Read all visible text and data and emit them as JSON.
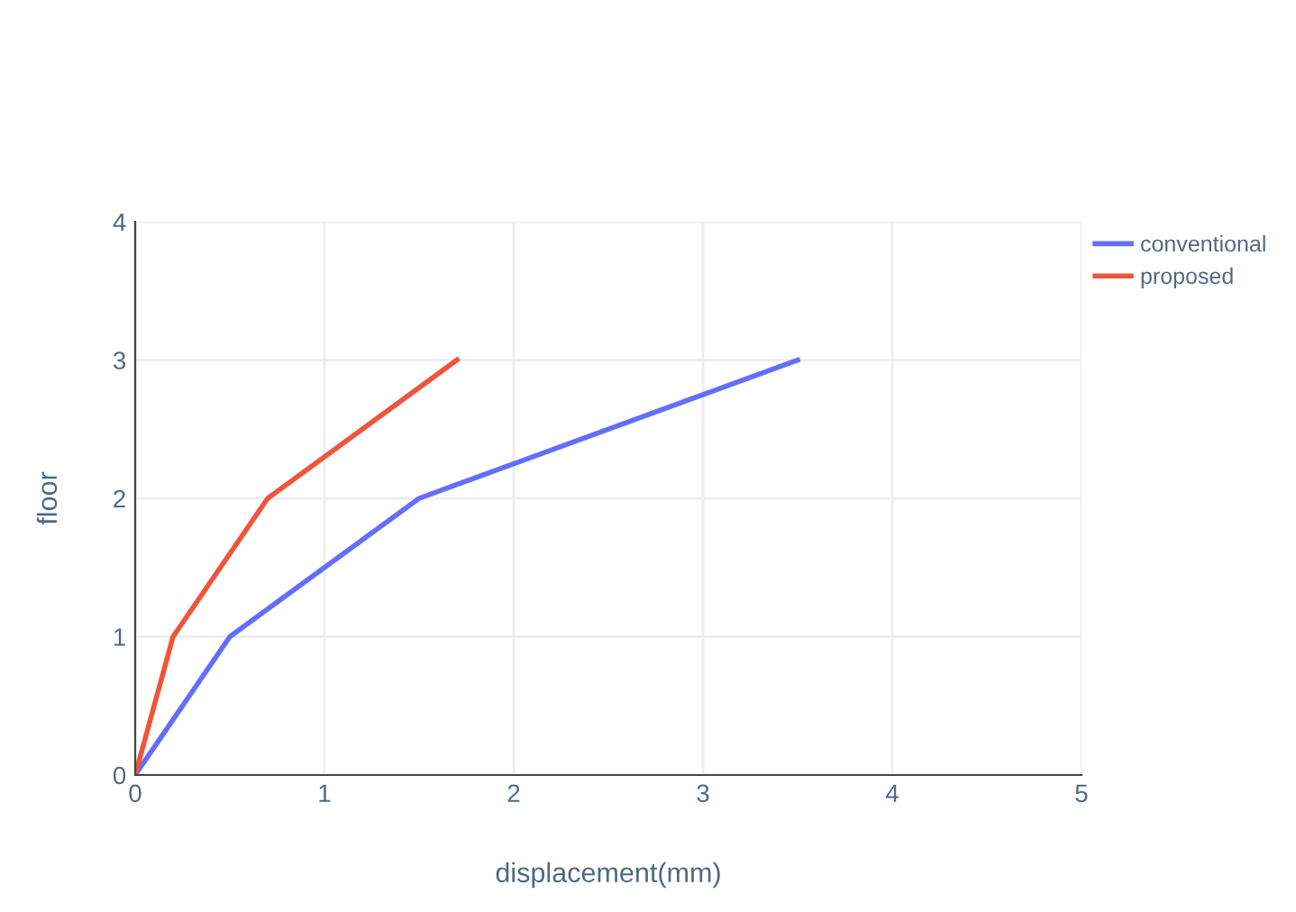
{
  "chart_data": {
    "type": "line",
    "xlabel": "displacement(mm)",
    "ylabel": "floor",
    "xlim": [
      0,
      5
    ],
    "ylim": [
      0,
      4
    ],
    "xticks": [
      0,
      1,
      2,
      3,
      4,
      5
    ],
    "yticks": [
      0,
      1,
      2,
      3,
      4
    ],
    "grid": true,
    "legend": "top right",
    "marker": "none",
    "line_style": "solid",
    "series": [
      {
        "name": "conventional",
        "color": "#636efa",
        "x": [
          0,
          0.5,
          1.5,
          3.5
        ],
        "values": [
          0,
          1,
          2,
          3
        ]
      },
      {
        "name": "proposed",
        "color": "#ef553b",
        "x": [
          0,
          0.2,
          0.7,
          1.7
        ],
        "values": [
          0,
          1,
          2,
          3
        ]
      }
    ]
  }
}
